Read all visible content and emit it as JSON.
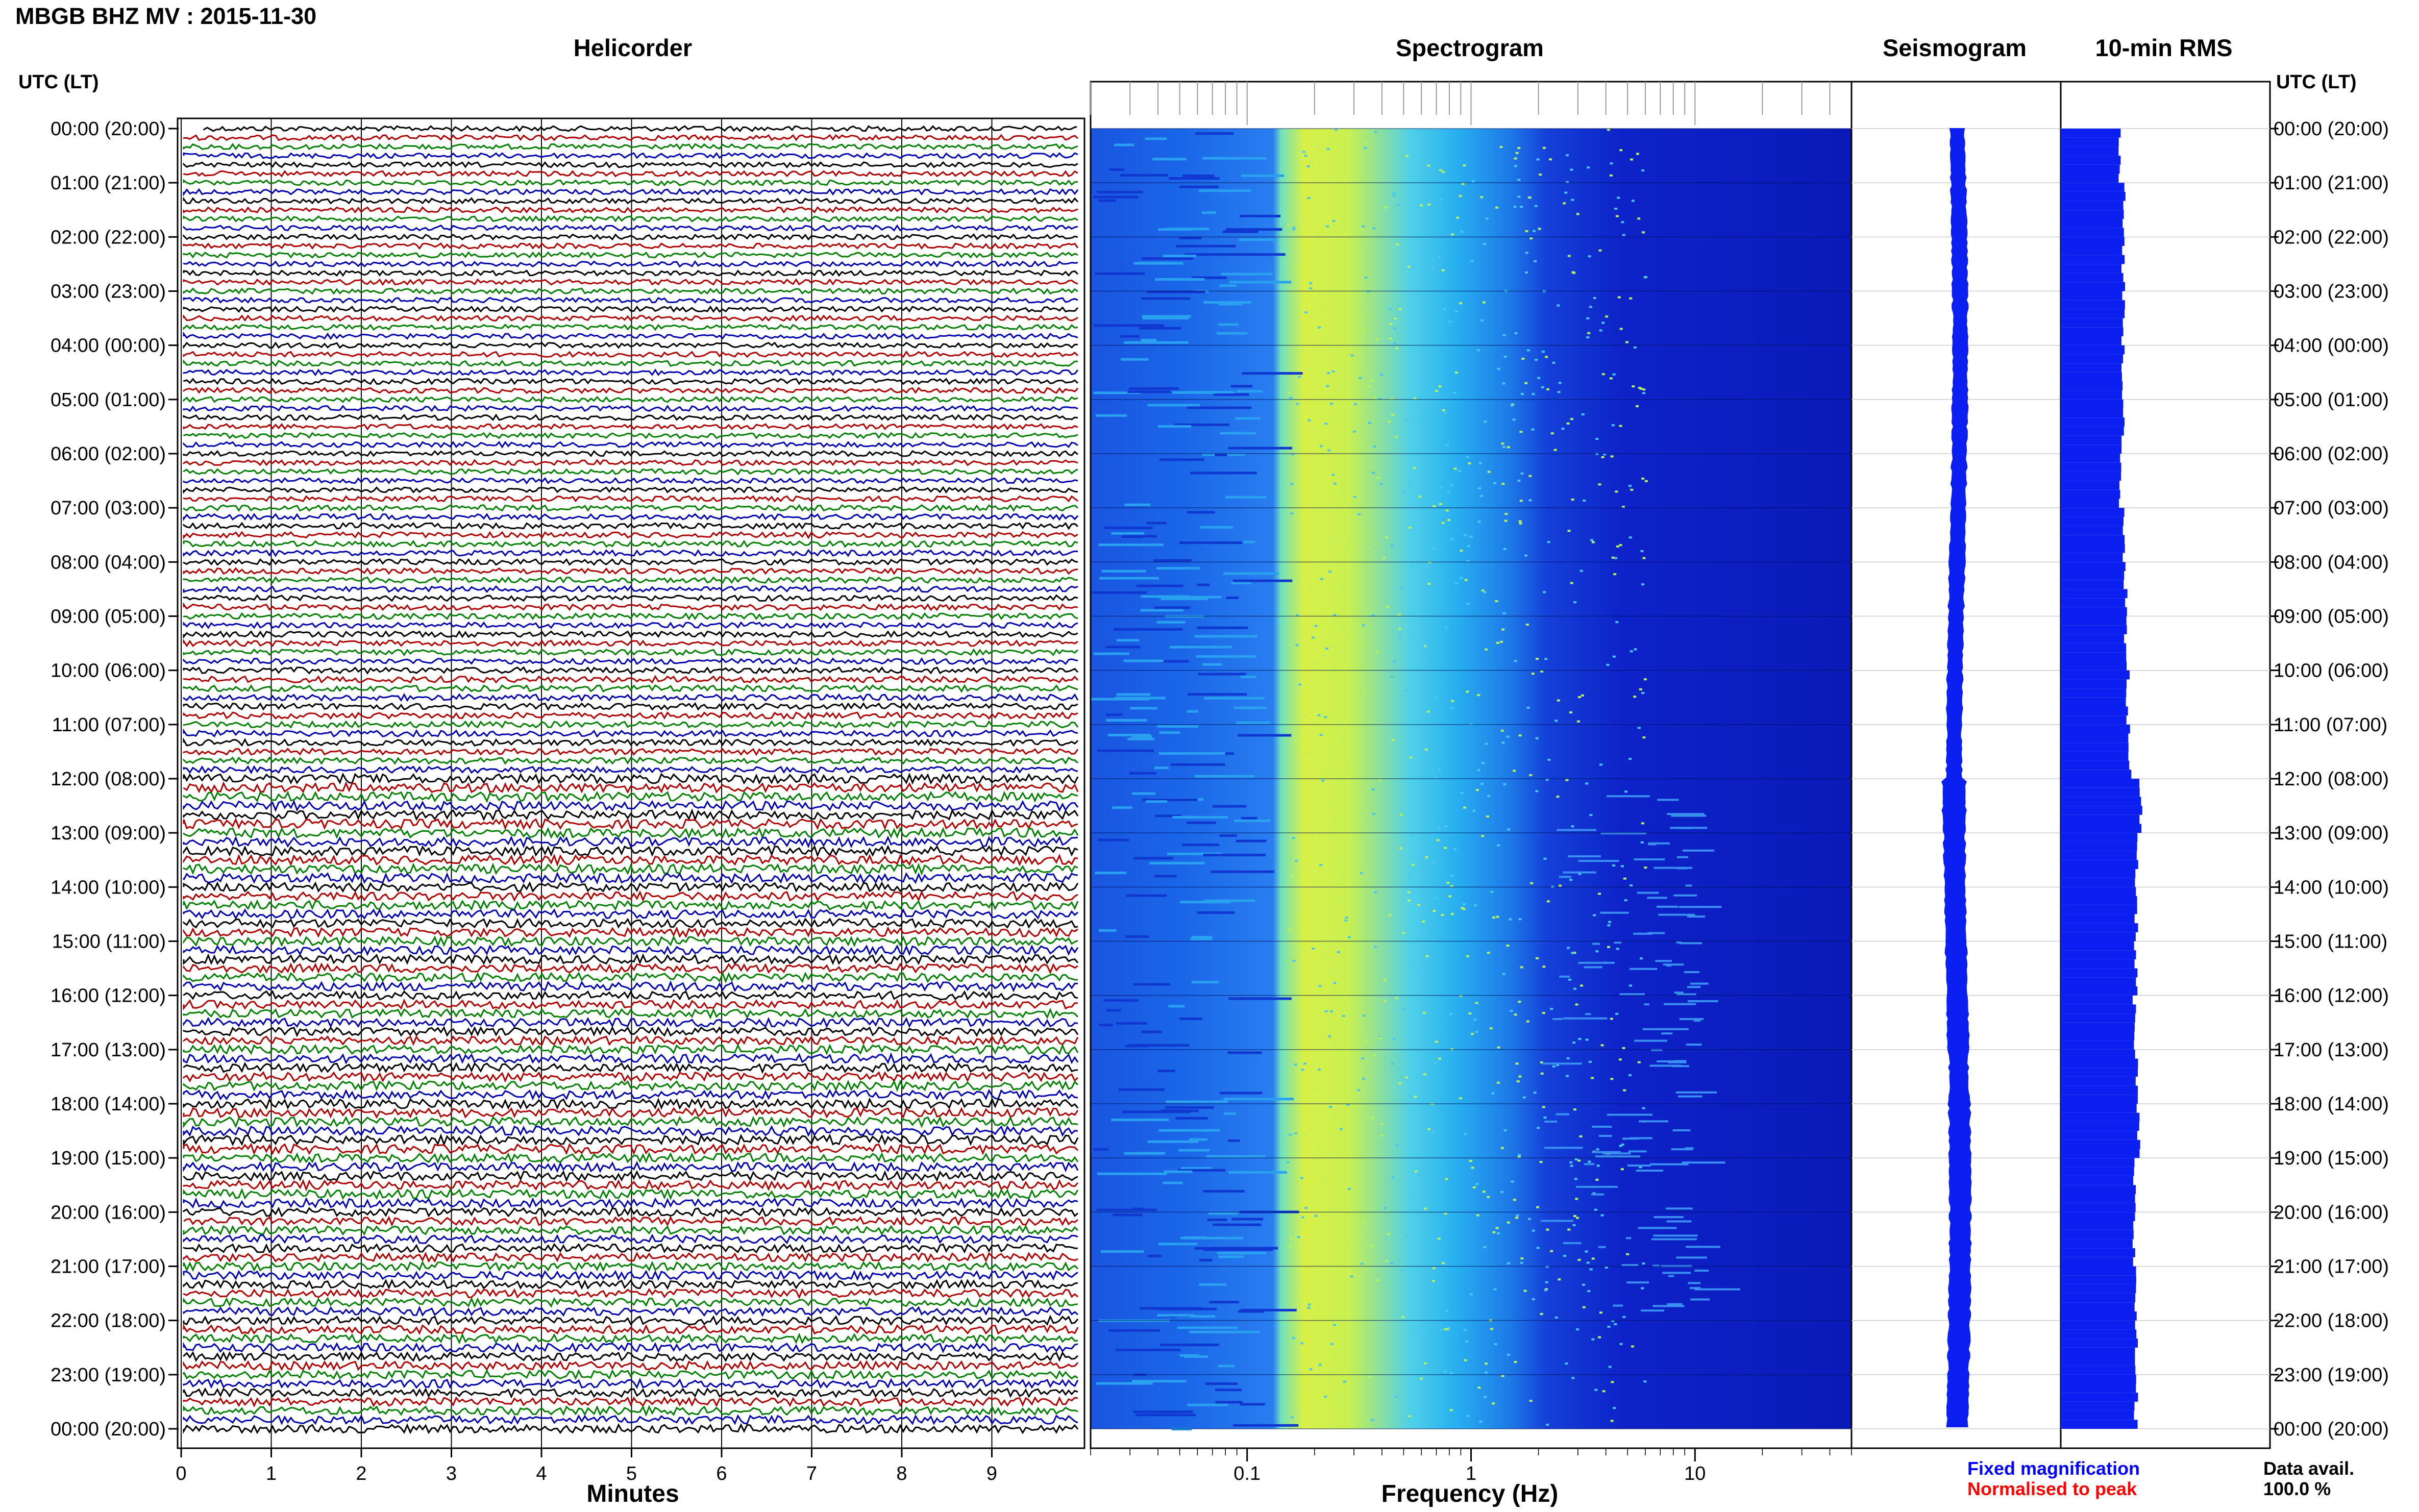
{
  "title": "MBGB BHZ MV : 2015-11-30",
  "panels": {
    "helicorder": "Helicorder",
    "spectrogram": "Spectrogram",
    "seismogram": "Seismogram",
    "rms": "10-min RMS"
  },
  "utc_header": "UTC (LT)",
  "colors": {
    "trace_cycle": [
      "#000000",
      "#b00000",
      "#008000",
      "#0000b0"
    ],
    "spectrogram_low": "#0a1fcc",
    "spectrogram_mid": "#30c8f0",
    "spectrogram_high": "#f0f040",
    "seismogram": "#0a1ff0",
    "rms": "#0a1ff0",
    "fixed_magnification": "#0000ff",
    "normalised_to_peak": "#ff0000"
  },
  "legend": {
    "fixed": "Fixed magnification",
    "normalised": "Normalised to peak"
  },
  "data_avail": {
    "label": "Data avail.",
    "value": "100.0 %"
  },
  "chart_data": [
    {
      "type": "line",
      "name": "Helicorder",
      "xlabel": "Minutes",
      "x_ticks": [
        0,
        1,
        2,
        3,
        4,
        5,
        6,
        7,
        8,
        9
      ],
      "xlim": [
        0,
        10
      ],
      "rows_per_hour": 6,
      "row_minutes": 10,
      "y_tick_labels": [
        "00:00 (20:00)",
        "01:00 (21:00)",
        "02:00 (22:00)",
        "03:00 (23:00)",
        "04:00 (00:00)",
        "05:00 (01:00)",
        "06:00 (02:00)",
        "07:00 (03:00)",
        "08:00 (04:00)",
        "09:00 (05:00)",
        "10:00 (06:00)",
        "11:00 (07:00)",
        "12:00 (08:00)",
        "13:00 (09:00)",
        "14:00 (10:00)",
        "15:00 (11:00)",
        "16:00 (12:00)",
        "17:00 (13:00)",
        "18:00 (14:00)",
        "19:00 (15:00)",
        "20:00 (16:00)",
        "21:00 (17:00)",
        "22:00 (18:00)",
        "23:00 (19:00)",
        "00:00 (20:00)"
      ],
      "relative_amplitude_by_hour": [
        0.5,
        0.5,
        0.5,
        0.5,
        0.5,
        0.5,
        0.5,
        0.55,
        0.55,
        0.55,
        0.6,
        0.6,
        0.9,
        0.9,
        0.85,
        0.85,
        0.8,
        0.85,
        0.9,
        0.85,
        0.8,
        0.8,
        0.8,
        0.8
      ]
    },
    {
      "type": "heatmap",
      "name": "Spectrogram",
      "xlabel": "Frequency (Hz)",
      "x_scale": "log",
      "xlim": [
        0.02,
        50
      ],
      "x_ticks": [
        0.1,
        1,
        10
      ],
      "x_tick_labels": [
        "0.1",
        "1",
        "10"
      ],
      "bands": [
        {
          "from_hz": 0.02,
          "to_hz": 0.15,
          "level": "blue"
        },
        {
          "from_hz": 0.15,
          "to_hz": 0.4,
          "level": "yellow-green"
        },
        {
          "from_hz": 0.4,
          "to_hz": 2,
          "level": "cyan"
        },
        {
          "from_hz": 2,
          "to_hz": 50,
          "level": "dark blue"
        }
      ]
    },
    {
      "type": "line",
      "name": "Seismogram",
      "relative_amplitude_by_hour": [
        0.3,
        0.3,
        0.3,
        0.3,
        0.3,
        0.3,
        0.3,
        0.3,
        0.3,
        0.3,
        0.3,
        0.3,
        0.5,
        0.45,
        0.45,
        0.45,
        0.45,
        0.4,
        0.45,
        0.45,
        0.45,
        0.45,
        0.45,
        0.45
      ]
    },
    {
      "type": "bar",
      "name": "10-min RMS",
      "relative_rms_by_hour": [
        0.28,
        0.3,
        0.3,
        0.3,
        0.3,
        0.3,
        0.28,
        0.3,
        0.31,
        0.31,
        0.32,
        0.33,
        0.38,
        0.36,
        0.36,
        0.36,
        0.35,
        0.36,
        0.37,
        0.35,
        0.35,
        0.36,
        0.36,
        0.36
      ]
    }
  ]
}
